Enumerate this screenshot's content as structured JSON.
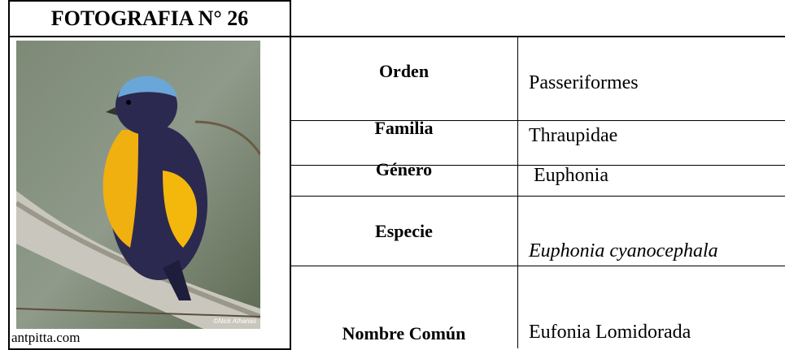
{
  "header": {
    "title": "FOTOGRAFIA N° 26"
  },
  "photo": {
    "credit": "antpitta.com",
    "watermark": "©Nick Athanas"
  },
  "table": {
    "rows": [
      {
        "label": "Orden",
        "value": "Passeriformes"
      },
      {
        "label": "Familia",
        "value": "Thraupidae"
      },
      {
        "label": "Género",
        "value": "Euphonia"
      },
      {
        "label": "Especie",
        "value": "Euphonia cyanocephala"
      },
      {
        "label": "Nombre Común",
        "value": "Eufonia Lomidorada"
      }
    ]
  }
}
